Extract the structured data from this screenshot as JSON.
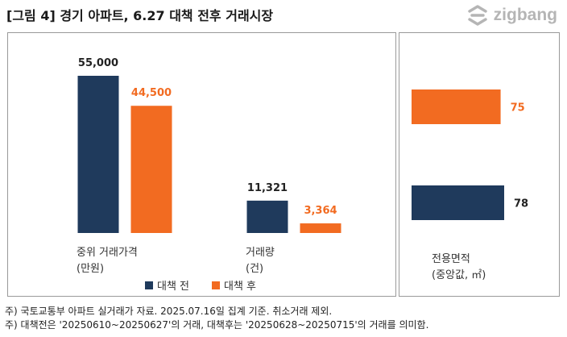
{
  "header": {
    "title": "[그림 4] 경기 아파트,  6.27 대책 전후 거래시장",
    "brand": "zigbang"
  },
  "colors": {
    "before": "#1F3A5C",
    "after": "#F26B21"
  },
  "chart_data": [
    {
      "type": "bar",
      "categories": [
        [
          "중위 거래가격",
          "(만원)"
        ],
        [
          "거래량",
          "(건)"
        ]
      ],
      "series": [
        {
          "name": "대책 전",
          "values": [
            55000,
            11321
          ],
          "labels": [
            "55,000",
            "11,321"
          ]
        },
        {
          "name": "대책 후",
          "values": [
            44500,
            3364
          ],
          "labels": [
            "44,500",
            "3,364"
          ]
        }
      ],
      "legend_position": "bottom",
      "grid": false
    },
    {
      "type": "bar",
      "orientation": "horizontal",
      "category_label": [
        "전용면적",
        "(중앙값, ㎡)"
      ],
      "bars": [
        {
          "series": "대책 후",
          "value": 75,
          "label": "75"
        },
        {
          "series": "대책 전",
          "value": 78,
          "label": "78"
        }
      ],
      "grid": false
    }
  ],
  "footnotes": [
    "주) 국토교통부 아파트 실거래가 자료. 2025.07.16일 집계 기준. 취소거래 제외.",
    "주) 대책전은 '20250610~20250627'의 거래, 대책후는 '20250628~20250715'의 거래를 의미함."
  ]
}
